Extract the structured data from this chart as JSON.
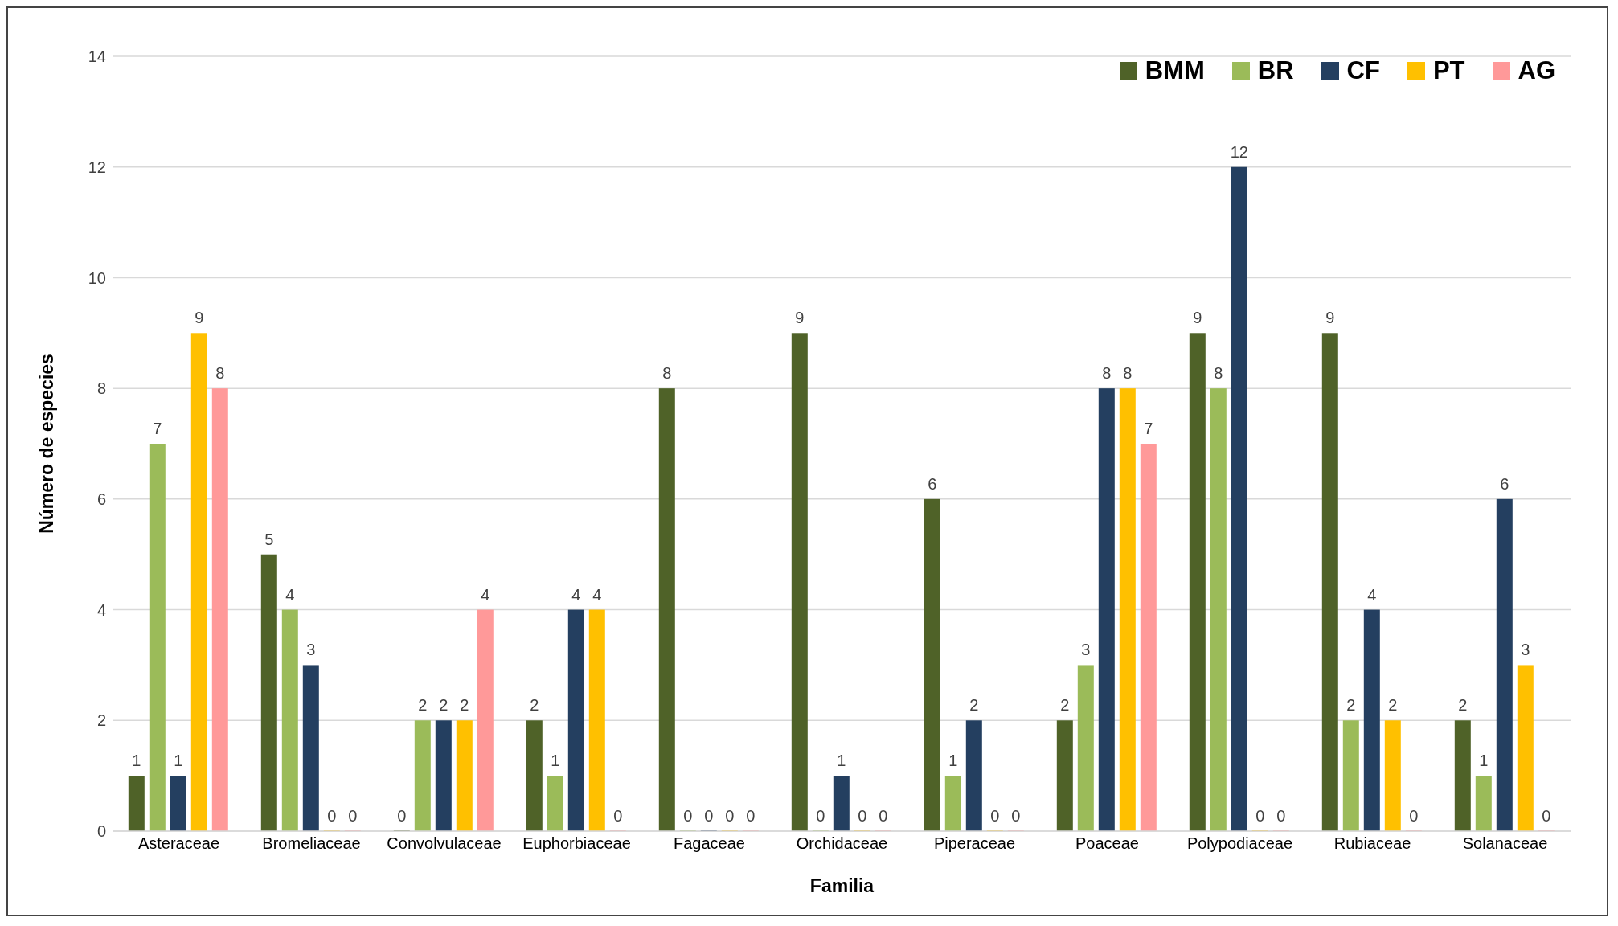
{
  "chart_data": {
    "type": "bar",
    "xlabel": "Familia",
    "ylabel": "Número de especies",
    "categories": [
      "Asteraceae",
      "Bromeliaceae",
      "Convolvulaceae",
      "Euphorbiaceae",
      "Fagaceae",
      "Orchidaceae",
      "Piperaceae",
      "Poaceae",
      "Polypodiaceae",
      "Rubiaceae",
      "Solanaceae"
    ],
    "series": [
      {
        "name": "BMM",
        "color": "#4f6228",
        "values": [
          1,
          5,
          0,
          2,
          8,
          9,
          6,
          2,
          9,
          9,
          2
        ]
      },
      {
        "name": "BR",
        "color": "#9bbb59",
        "values": [
          7,
          4,
          2,
          1,
          0,
          0,
          1,
          3,
          8,
          2,
          1
        ]
      },
      {
        "name": "CF",
        "color": "#243f60",
        "values": [
          1,
          3,
          2,
          4,
          0,
          1,
          2,
          8,
          12,
          4,
          6
        ]
      },
      {
        "name": "PT",
        "color": "#ffc000",
        "values": [
          9,
          0,
          2,
          4,
          0,
          0,
          0,
          8,
          0,
          2,
          3
        ]
      },
      {
        "name": "AG",
        "color": "#ff9999",
        "values": [
          8,
          0,
          4,
          0,
          0,
          0,
          0,
          7,
          0,
          0,
          0
        ]
      }
    ],
    "ylim": [
      0,
      14
    ],
    "yticks": [
      0,
      2,
      4,
      6,
      8,
      10,
      12,
      14
    ],
    "grid": "y",
    "legend": "top right",
    "data_labels": true
  }
}
